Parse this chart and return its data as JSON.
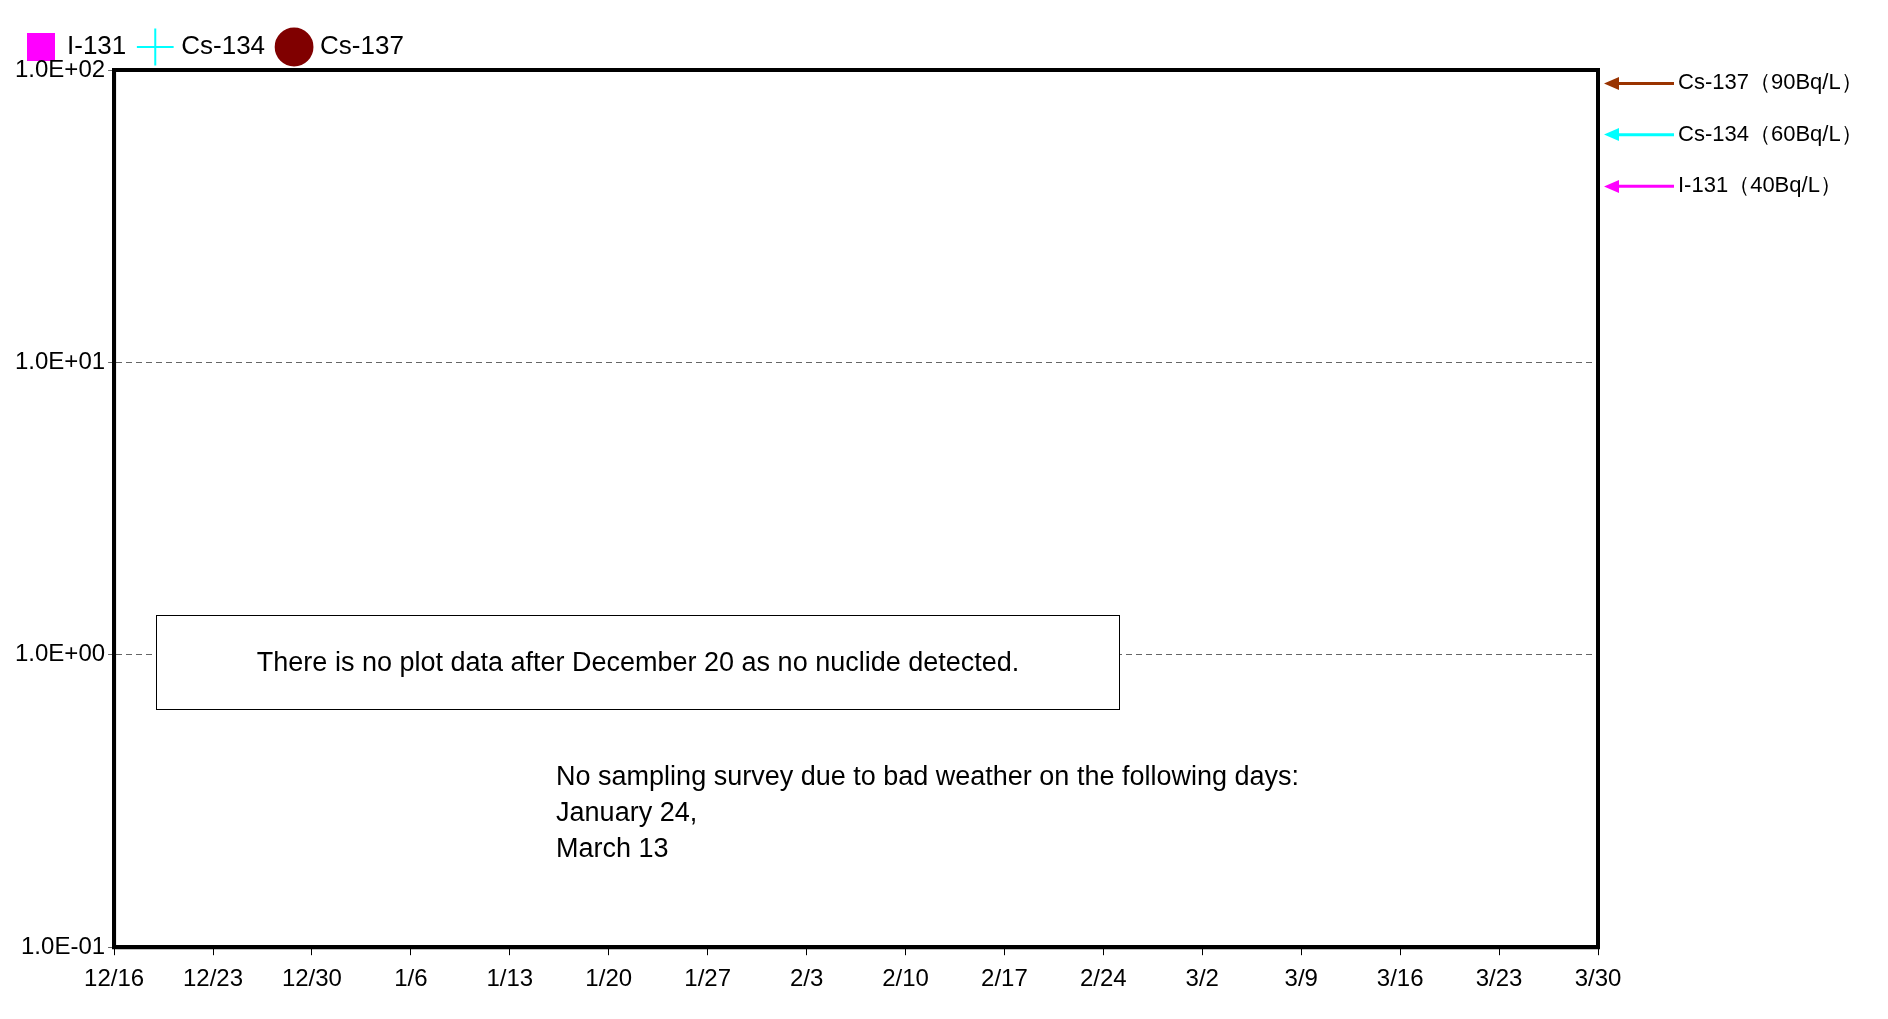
{
  "chart_data": {
    "type": "line",
    "log": "y",
    "categories": [
      "12/16",
      "12/23",
      "12/30",
      "1/6",
      "1/13",
      "1/20",
      "1/27",
      "2/3",
      "2/10",
      "2/17",
      "2/24",
      "3/2",
      "3/9",
      "3/16",
      "3/23",
      "3/30"
    ],
    "ylim": [
      0.1,
      100
    ],
    "yticks": [
      {
        "value": 0.1,
        "label": "1.0E-01"
      },
      {
        "value": 1,
        "label": "1.0E+00"
      },
      {
        "value": 10,
        "label": "1.0E+01"
      },
      {
        "value": 100,
        "label": "1.0E+02"
      }
    ],
    "grid": "y",
    "legend": "top left",
    "series": [
      {
        "name": "I-131",
        "color": "#ff00ff",
        "marker": "square",
        "values": [
          null,
          null,
          null,
          null,
          null,
          null,
          null,
          null,
          null,
          null,
          null,
          null,
          null,
          null,
          null,
          null
        ]
      },
      {
        "name": "Cs-134",
        "color": "#00ffff",
        "marker": "cross",
        "values": [
          null,
          null,
          null,
          null,
          null,
          null,
          null,
          null,
          null,
          null,
          null,
          null,
          null,
          null,
          null,
          null
        ]
      },
      {
        "name": "Cs-137",
        "color": "#800000",
        "marker": "circle",
        "values": [
          null,
          null,
          null,
          null,
          null,
          null,
          null,
          null,
          null,
          null,
          null,
          null,
          null,
          null,
          null,
          null
        ]
      }
    ],
    "ref_lines": [
      {
        "axis": "y",
        "value": 90,
        "label": "Cs-137（90Bq/L）",
        "color": "#993300"
      },
      {
        "axis": "y",
        "value": 60,
        "label": "Cs-134（60Bq/L）",
        "color": "#00ffff"
      },
      {
        "axis": "y",
        "value": 40,
        "label": "I-131（40Bq/L）",
        "color": "#ff00ff"
      }
    ],
    "annotations": [
      "There is no plot data after December 20 as no nuclide detected.",
      "No sampling survey due to bad weather on the following days:\nJanuary 24,\nMarch 13"
    ]
  }
}
